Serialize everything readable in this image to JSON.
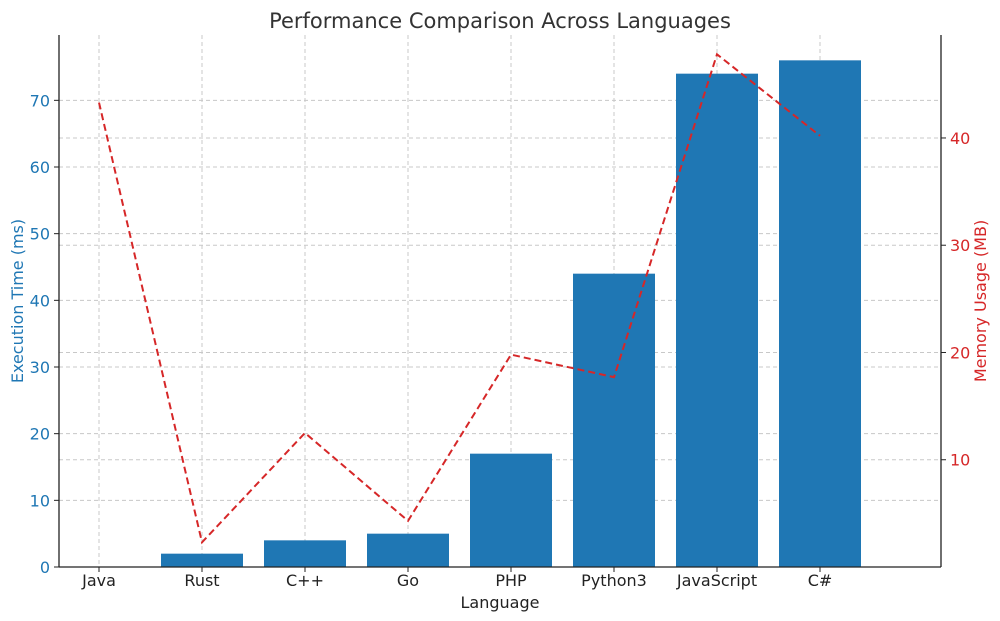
{
  "chart_data": {
    "type": "bar",
    "title": "Performance Comparison Across Languages",
    "xlabel": "Language",
    "ylabel": "Execution Time (ms)",
    "y2label": "Memory Usage (MB)",
    "categories": [
      "Java",
      "Rust",
      "C++",
      "Go",
      "PHP",
      "Python3",
      "JavaScript",
      "C#"
    ],
    "series": [
      {
        "name": "Execution Time (ms)",
        "type": "bar",
        "axis": "left",
        "color": "#1f77b4",
        "values": [
          0,
          2,
          4,
          5,
          17,
          44,
          74,
          76
        ]
      },
      {
        "name": "Memory Usage (MB)",
        "type": "line",
        "axis": "right",
        "color": "#d62728",
        "line_style": "dashed",
        "values": [
          43.3,
          2.3,
          12.5,
          4.3,
          19.8,
          17.7,
          47.8,
          40.2
        ]
      }
    ],
    "ylim": [
      0,
      79.8
    ],
    "y2lim": [
      0,
      49.6
    ],
    "yticks": [
      0,
      10,
      20,
      30,
      40,
      50,
      60,
      70
    ],
    "y2ticks": [
      10,
      20,
      30,
      40
    ],
    "grid": true
  }
}
